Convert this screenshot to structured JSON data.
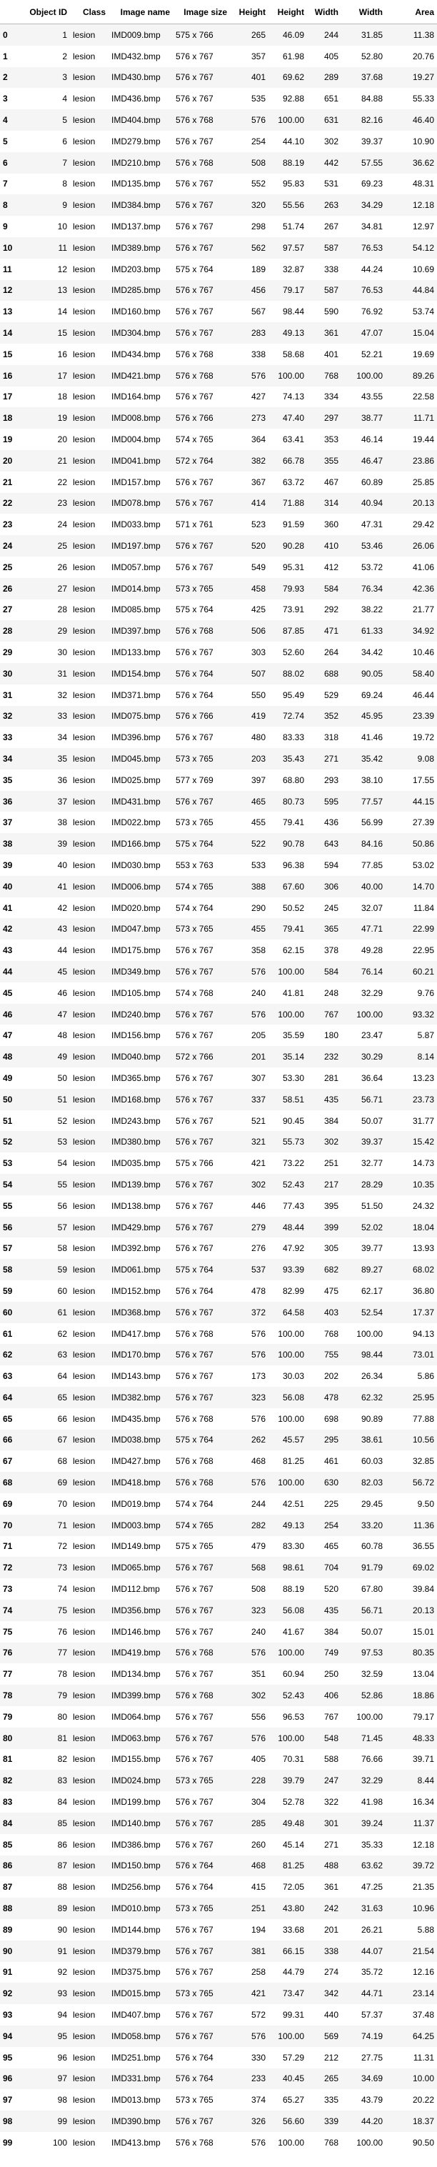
{
  "columns": [
    "Object ID",
    "Class",
    "Image name",
    "Image size",
    "Height",
    "Height",
    "Width",
    "Width",
    "Area"
  ],
  "rows": [
    [
      "0",
      "1",
      "lesion",
      "IMD009.bmp",
      "575 x 766",
      "265",
      "46.09",
      "244",
      "31.85",
      "11.38"
    ],
    [
      "1",
      "2",
      "lesion",
      "IMD432.bmp",
      "576 x 767",
      "357",
      "61.98",
      "405",
      "52.80",
      "20.76"
    ],
    [
      "2",
      "3",
      "lesion",
      "IMD430.bmp",
      "576 x 767",
      "401",
      "69.62",
      "289",
      "37.68",
      "19.27"
    ],
    [
      "3",
      "4",
      "lesion",
      "IMD436.bmp",
      "576 x 767",
      "535",
      "92.88",
      "651",
      "84.88",
      "55.33"
    ],
    [
      "4",
      "5",
      "lesion",
      "IMD404.bmp",
      "576 x 768",
      "576",
      "100.00",
      "631",
      "82.16",
      "46.40"
    ],
    [
      "5",
      "6",
      "lesion",
      "IMD279.bmp",
      "576 x 767",
      "254",
      "44.10",
      "302",
      "39.37",
      "10.90"
    ],
    [
      "6",
      "7",
      "lesion",
      "IMD210.bmp",
      "576 x 768",
      "508",
      "88.19",
      "442",
      "57.55",
      "36.62"
    ],
    [
      "7",
      "8",
      "lesion",
      "IMD135.bmp",
      "576 x 767",
      "552",
      "95.83",
      "531",
      "69.23",
      "48.31"
    ],
    [
      "8",
      "9",
      "lesion",
      "IMD384.bmp",
      "576 x 767",
      "320",
      "55.56",
      "263",
      "34.29",
      "12.18"
    ],
    [
      "9",
      "10",
      "lesion",
      "IMD137.bmp",
      "576 x 767",
      "298",
      "51.74",
      "267",
      "34.81",
      "12.97"
    ],
    [
      "10",
      "11",
      "lesion",
      "IMD389.bmp",
      "576 x 767",
      "562",
      "97.57",
      "587",
      "76.53",
      "54.12"
    ],
    [
      "11",
      "12",
      "lesion",
      "IMD203.bmp",
      "575 x 764",
      "189",
      "32.87",
      "338",
      "44.24",
      "10.69"
    ],
    [
      "12",
      "13",
      "lesion",
      "IMD285.bmp",
      "576 x 767",
      "456",
      "79.17",
      "587",
      "76.53",
      "44.84"
    ],
    [
      "13",
      "14",
      "lesion",
      "IMD160.bmp",
      "576 x 767",
      "567",
      "98.44",
      "590",
      "76.92",
      "53.74"
    ],
    [
      "14",
      "15",
      "lesion",
      "IMD304.bmp",
      "576 x 767",
      "283",
      "49.13",
      "361",
      "47.07",
      "15.04"
    ],
    [
      "15",
      "16",
      "lesion",
      "IMD434.bmp",
      "576 x 768",
      "338",
      "58.68",
      "401",
      "52.21",
      "19.69"
    ],
    [
      "16",
      "17",
      "lesion",
      "IMD421.bmp",
      "576 x 768",
      "576",
      "100.00",
      "768",
      "100.00",
      "89.26"
    ],
    [
      "17",
      "18",
      "lesion",
      "IMD164.bmp",
      "576 x 767",
      "427",
      "74.13",
      "334",
      "43.55",
      "22.58"
    ],
    [
      "18",
      "19",
      "lesion",
      "IMD008.bmp",
      "576 x 766",
      "273",
      "47.40",
      "297",
      "38.77",
      "11.71"
    ],
    [
      "19",
      "20",
      "lesion",
      "IMD004.bmp",
      "574 x 765",
      "364",
      "63.41",
      "353",
      "46.14",
      "19.44"
    ],
    [
      "20",
      "21",
      "lesion",
      "IMD041.bmp",
      "572 x 764",
      "382",
      "66.78",
      "355",
      "46.47",
      "23.86"
    ],
    [
      "21",
      "22",
      "lesion",
      "IMD157.bmp",
      "576 x 767",
      "367",
      "63.72",
      "467",
      "60.89",
      "25.85"
    ],
    [
      "22",
      "23",
      "lesion",
      "IMD078.bmp",
      "576 x 767",
      "414",
      "71.88",
      "314",
      "40.94",
      "20.13"
    ],
    [
      "23",
      "24",
      "lesion",
      "IMD033.bmp",
      "571 x 761",
      "523",
      "91.59",
      "360",
      "47.31",
      "29.42"
    ],
    [
      "24",
      "25",
      "lesion",
      "IMD197.bmp",
      "576 x 767",
      "520",
      "90.28",
      "410",
      "53.46",
      "26.06"
    ],
    [
      "25",
      "26",
      "lesion",
      "IMD057.bmp",
      "576 x 767",
      "549",
      "95.31",
      "412",
      "53.72",
      "41.06"
    ],
    [
      "26",
      "27",
      "lesion",
      "IMD014.bmp",
      "573 x 765",
      "458",
      "79.93",
      "584",
      "76.34",
      "42.36"
    ],
    [
      "27",
      "28",
      "lesion",
      "IMD085.bmp",
      "575 x 764",
      "425",
      "73.91",
      "292",
      "38.22",
      "21.77"
    ],
    [
      "28",
      "29",
      "lesion",
      "IMD397.bmp",
      "576 x 768",
      "506",
      "87.85",
      "471",
      "61.33",
      "34.92"
    ],
    [
      "29",
      "30",
      "lesion",
      "IMD133.bmp",
      "576 x 767",
      "303",
      "52.60",
      "264",
      "34.42",
      "10.46"
    ],
    [
      "30",
      "31",
      "lesion",
      "IMD154.bmp",
      "576 x 764",
      "507",
      "88.02",
      "688",
      "90.05",
      "58.40"
    ],
    [
      "31",
      "32",
      "lesion",
      "IMD371.bmp",
      "576 x 764",
      "550",
      "95.49",
      "529",
      "69.24",
      "46.44"
    ],
    [
      "32",
      "33",
      "lesion",
      "IMD075.bmp",
      "576 x 766",
      "419",
      "72.74",
      "352",
      "45.95",
      "23.39"
    ],
    [
      "33",
      "34",
      "lesion",
      "IMD396.bmp",
      "576 x 767",
      "480",
      "83.33",
      "318",
      "41.46",
      "19.72"
    ],
    [
      "34",
      "35",
      "lesion",
      "IMD045.bmp",
      "573 x 765",
      "203",
      "35.43",
      "271",
      "35.42",
      "9.08"
    ],
    [
      "35",
      "36",
      "lesion",
      "IMD025.bmp",
      "577 x 769",
      "397",
      "68.80",
      "293",
      "38.10",
      "17.55"
    ],
    [
      "36",
      "37",
      "lesion",
      "IMD431.bmp",
      "576 x 767",
      "465",
      "80.73",
      "595",
      "77.57",
      "44.15"
    ],
    [
      "37",
      "38",
      "lesion",
      "IMD022.bmp",
      "573 x 765",
      "455",
      "79.41",
      "436",
      "56.99",
      "27.39"
    ],
    [
      "38",
      "39",
      "lesion",
      "IMD166.bmp",
      "575 x 764",
      "522",
      "90.78",
      "643",
      "84.16",
      "50.86"
    ],
    [
      "39",
      "40",
      "lesion",
      "IMD030.bmp",
      "553 x 763",
      "533",
      "96.38",
      "594",
      "77.85",
      "53.02"
    ],
    [
      "40",
      "41",
      "lesion",
      "IMD006.bmp",
      "574 x 765",
      "388",
      "67.60",
      "306",
      "40.00",
      "14.70"
    ],
    [
      "41",
      "42",
      "lesion",
      "IMD020.bmp",
      "574 x 764",
      "290",
      "50.52",
      "245",
      "32.07",
      "11.84"
    ],
    [
      "42",
      "43",
      "lesion",
      "IMD047.bmp",
      "573 x 765",
      "455",
      "79.41",
      "365",
      "47.71",
      "22.99"
    ],
    [
      "43",
      "44",
      "lesion",
      "IMD175.bmp",
      "576 x 767",
      "358",
      "62.15",
      "378",
      "49.28",
      "22.95"
    ],
    [
      "44",
      "45",
      "lesion",
      "IMD349.bmp",
      "576 x 767",
      "576",
      "100.00",
      "584",
      "76.14",
      "60.21"
    ],
    [
      "45",
      "46",
      "lesion",
      "IMD105.bmp",
      "574 x 768",
      "240",
      "41.81",
      "248",
      "32.29",
      "9.76"
    ],
    [
      "46",
      "47",
      "lesion",
      "IMD240.bmp",
      "576 x 767",
      "576",
      "100.00",
      "767",
      "100.00",
      "93.32"
    ],
    [
      "47",
      "48",
      "lesion",
      "IMD156.bmp",
      "576 x 767",
      "205",
      "35.59",
      "180",
      "23.47",
      "5.87"
    ],
    [
      "48",
      "49",
      "lesion",
      "IMD040.bmp",
      "572 x 766",
      "201",
      "35.14",
      "232",
      "30.29",
      "8.14"
    ],
    [
      "49",
      "50",
      "lesion",
      "IMD365.bmp",
      "576 x 767",
      "307",
      "53.30",
      "281",
      "36.64",
      "13.23"
    ],
    [
      "50",
      "51",
      "lesion",
      "IMD168.bmp",
      "576 x 767",
      "337",
      "58.51",
      "435",
      "56.71",
      "23.73"
    ],
    [
      "51",
      "52",
      "lesion",
      "IMD243.bmp",
      "576 x 767",
      "521",
      "90.45",
      "384",
      "50.07",
      "31.77"
    ],
    [
      "52",
      "53",
      "lesion",
      "IMD380.bmp",
      "576 x 767",
      "321",
      "55.73",
      "302",
      "39.37",
      "15.42"
    ],
    [
      "53",
      "54",
      "lesion",
      "IMD035.bmp",
      "575 x 766",
      "421",
      "73.22",
      "251",
      "32.77",
      "14.73"
    ],
    [
      "54",
      "55",
      "lesion",
      "IMD139.bmp",
      "576 x 767",
      "302",
      "52.43",
      "217",
      "28.29",
      "10.35"
    ],
    [
      "55",
      "56",
      "lesion",
      "IMD138.bmp",
      "576 x 767",
      "446",
      "77.43",
      "395",
      "51.50",
      "24.32"
    ],
    [
      "56",
      "57",
      "lesion",
      "IMD429.bmp",
      "576 x 767",
      "279",
      "48.44",
      "399",
      "52.02",
      "18.04"
    ],
    [
      "57",
      "58",
      "lesion",
      "IMD392.bmp",
      "576 x 767",
      "276",
      "47.92",
      "305",
      "39.77",
      "13.93"
    ],
    [
      "58",
      "59",
      "lesion",
      "IMD061.bmp",
      "575 x 764",
      "537",
      "93.39",
      "682",
      "89.27",
      "68.02"
    ],
    [
      "59",
      "60",
      "lesion",
      "IMD152.bmp",
      "576 x 764",
      "478",
      "82.99",
      "475",
      "62.17",
      "36.80"
    ],
    [
      "60",
      "61",
      "lesion",
      "IMD368.bmp",
      "576 x 767",
      "372",
      "64.58",
      "403",
      "52.54",
      "17.37"
    ],
    [
      "61",
      "62",
      "lesion",
      "IMD417.bmp",
      "576 x 768",
      "576",
      "100.00",
      "768",
      "100.00",
      "94.13"
    ],
    [
      "62",
      "63",
      "lesion",
      "IMD170.bmp",
      "576 x 767",
      "576",
      "100.00",
      "755",
      "98.44",
      "73.01"
    ],
    [
      "63",
      "64",
      "lesion",
      "IMD143.bmp",
      "576 x 767",
      "173",
      "30.03",
      "202",
      "26.34",
      "5.86"
    ],
    [
      "64",
      "65",
      "lesion",
      "IMD382.bmp",
      "576 x 767",
      "323",
      "56.08",
      "478",
      "62.32",
      "25.95"
    ],
    [
      "65",
      "66",
      "lesion",
      "IMD435.bmp",
      "576 x 768",
      "576",
      "100.00",
      "698",
      "90.89",
      "77.88"
    ],
    [
      "66",
      "67",
      "lesion",
      "IMD038.bmp",
      "575 x 764",
      "262",
      "45.57",
      "295",
      "38.61",
      "10.56"
    ],
    [
      "67",
      "68",
      "lesion",
      "IMD427.bmp",
      "576 x 768",
      "468",
      "81.25",
      "461",
      "60.03",
      "32.85"
    ],
    [
      "68",
      "69",
      "lesion",
      "IMD418.bmp",
      "576 x 768",
      "576",
      "100.00",
      "630",
      "82.03",
      "56.72"
    ],
    [
      "69",
      "70",
      "lesion",
      "IMD019.bmp",
      "574 x 764",
      "244",
      "42.51",
      "225",
      "29.45",
      "9.50"
    ],
    [
      "70",
      "71",
      "lesion",
      "IMD003.bmp",
      "574 x 765",
      "282",
      "49.13",
      "254",
      "33.20",
      "11.36"
    ],
    [
      "71",
      "72",
      "lesion",
      "IMD149.bmp",
      "575 x 765",
      "479",
      "83.30",
      "465",
      "60.78",
      "36.55"
    ],
    [
      "72",
      "73",
      "lesion",
      "IMD065.bmp",
      "576 x 767",
      "568",
      "98.61",
      "704",
      "91.79",
      "69.02"
    ],
    [
      "73",
      "74",
      "lesion",
      "IMD112.bmp",
      "576 x 767",
      "508",
      "88.19",
      "520",
      "67.80",
      "39.84"
    ],
    [
      "74",
      "75",
      "lesion",
      "IMD356.bmp",
      "576 x 767",
      "323",
      "56.08",
      "435",
      "56.71",
      "20.13"
    ],
    [
      "75",
      "76",
      "lesion",
      "IMD146.bmp",
      "576 x 767",
      "240",
      "41.67",
      "384",
      "50.07",
      "15.01"
    ],
    [
      "76",
      "77",
      "lesion",
      "IMD419.bmp",
      "576 x 768",
      "576",
      "100.00",
      "749",
      "97.53",
      "80.35"
    ],
    [
      "77",
      "78",
      "lesion",
      "IMD134.bmp",
      "576 x 767",
      "351",
      "60.94",
      "250",
      "32.59",
      "13.04"
    ],
    [
      "78",
      "79",
      "lesion",
      "IMD399.bmp",
      "576 x 768",
      "302",
      "52.43",
      "406",
      "52.86",
      "18.86"
    ],
    [
      "79",
      "80",
      "lesion",
      "IMD064.bmp",
      "576 x 767",
      "556",
      "96.53",
      "767",
      "100.00",
      "79.17"
    ],
    [
      "80",
      "81",
      "lesion",
      "IMD063.bmp",
      "576 x 767",
      "576",
      "100.00",
      "548",
      "71.45",
      "48.33"
    ],
    [
      "81",
      "82",
      "lesion",
      "IMD155.bmp",
      "576 x 767",
      "405",
      "70.31",
      "588",
      "76.66",
      "39.71"
    ],
    [
      "82",
      "83",
      "lesion",
      "IMD024.bmp",
      "573 x 765",
      "228",
      "39.79",
      "247",
      "32.29",
      "8.44"
    ],
    [
      "83",
      "84",
      "lesion",
      "IMD199.bmp",
      "576 x 767",
      "304",
      "52.78",
      "322",
      "41.98",
      "16.34"
    ],
    [
      "84",
      "85",
      "lesion",
      "IMD140.bmp",
      "576 x 767",
      "285",
      "49.48",
      "301",
      "39.24",
      "11.37"
    ],
    [
      "85",
      "86",
      "lesion",
      "IMD386.bmp",
      "576 x 767",
      "260",
      "45.14",
      "271",
      "35.33",
      "12.18"
    ],
    [
      "86",
      "87",
      "lesion",
      "IMD150.bmp",
      "576 x 764",
      "468",
      "81.25",
      "488",
      "63.62",
      "39.72"
    ],
    [
      "87",
      "88",
      "lesion",
      "IMD256.bmp",
      "576 x 764",
      "415",
      "72.05",
      "361",
      "47.25",
      "21.35"
    ],
    [
      "88",
      "89",
      "lesion",
      "IMD010.bmp",
      "573 x 765",
      "251",
      "43.80",
      "242",
      "31.63",
      "10.96"
    ],
    [
      "89",
      "90",
      "lesion",
      "IMD144.bmp",
      "576 x 767",
      "194",
      "33.68",
      "201",
      "26.21",
      "5.88"
    ],
    [
      "90",
      "91",
      "lesion",
      "IMD379.bmp",
      "576 x 767",
      "381",
      "66.15",
      "338",
      "44.07",
      "21.54"
    ],
    [
      "91",
      "92",
      "lesion",
      "IMD375.bmp",
      "576 x 767",
      "258",
      "44.79",
      "274",
      "35.72",
      "12.16"
    ],
    [
      "92",
      "93",
      "lesion",
      "IMD015.bmp",
      "573 x 765",
      "421",
      "73.47",
      "342",
      "44.71",
      "23.14"
    ],
    [
      "93",
      "94",
      "lesion",
      "IMD407.bmp",
      "576 x 767",
      "572",
      "99.31",
      "440",
      "57.37",
      "37.48"
    ],
    [
      "94",
      "95",
      "lesion",
      "IMD058.bmp",
      "576 x 767",
      "576",
      "100.00",
      "569",
      "74.19",
      "64.25"
    ],
    [
      "95",
      "96",
      "lesion",
      "IMD251.bmp",
      "576 x 764",
      "330",
      "57.29",
      "212",
      "27.75",
      "11.31"
    ],
    [
      "96",
      "97",
      "lesion",
      "IMD331.bmp",
      "576 x 764",
      "233",
      "40.45",
      "265",
      "34.69",
      "10.00"
    ],
    [
      "97",
      "98",
      "lesion",
      "IMD013.bmp",
      "573 x 765",
      "374",
      "65.27",
      "335",
      "43.79",
      "20.22"
    ],
    [
      "98",
      "99",
      "lesion",
      "IMD390.bmp",
      "576 x 767",
      "326",
      "56.60",
      "339",
      "44.20",
      "18.37"
    ],
    [
      "99",
      "100",
      "lesion",
      "IMD413.bmp",
      "576 x 768",
      "576",
      "100.00",
      "768",
      "100.00",
      "90.50"
    ]
  ]
}
